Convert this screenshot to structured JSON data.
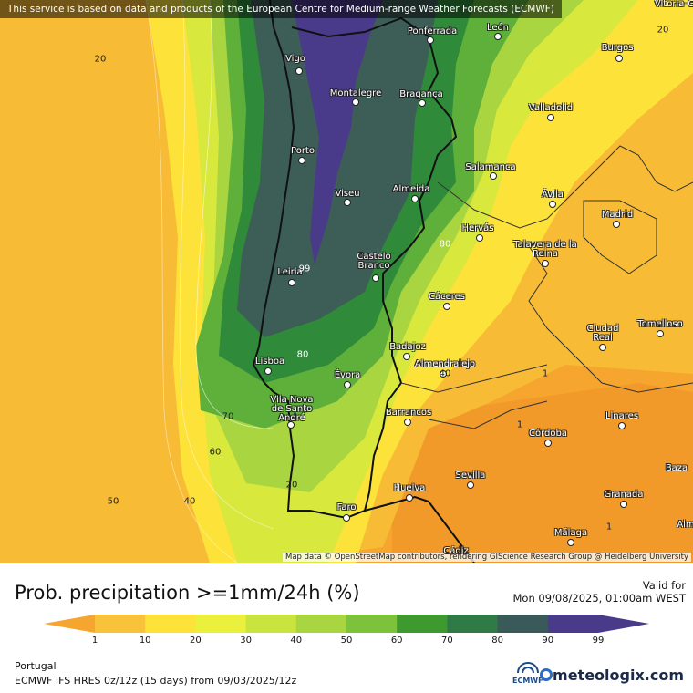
{
  "map": {
    "banner": "This service is based on data and products of the European Centre for Medium-range Weather Forecasts (ECMWF)",
    "attribution": "Map data © OpenStreetMap contributors, rendering GIScience Research Group @ Heidelberg University",
    "corner_label": "Vitoria-G",
    "cities": [
      {
        "name": "Vigo"
      },
      {
        "name": "Ponferrada"
      },
      {
        "name": "León"
      },
      {
        "name": "Burgos"
      },
      {
        "name": "Montalegre"
      },
      {
        "name": "Bragança"
      },
      {
        "name": "Valladolid"
      },
      {
        "name": "Porto"
      },
      {
        "name": "Salamanca"
      },
      {
        "name": "Viseu"
      },
      {
        "name": "Almeida"
      },
      {
        "name": "Ávila"
      },
      {
        "name": "Madrid"
      },
      {
        "name": "Hervás"
      },
      {
        "name": "Talavera de la Reina"
      },
      {
        "name": "Castelo Branco"
      },
      {
        "name": "Leiria"
      },
      {
        "name": "Cáceres"
      },
      {
        "name": "Ciudad Real"
      },
      {
        "name": "Tomelloso"
      },
      {
        "name": "Lisboa"
      },
      {
        "name": "Badajoz"
      },
      {
        "name": "Almendralejo"
      },
      {
        "name": "Évora"
      },
      {
        "name": "Vila Nova de Santo André"
      },
      {
        "name": "Barrancos"
      },
      {
        "name": "Linares"
      },
      {
        "name": "Córdoba"
      },
      {
        "name": "Sevilla"
      },
      {
        "name": "Baza"
      },
      {
        "name": "Huelva"
      },
      {
        "name": "Granada"
      },
      {
        "name": "Faro"
      },
      {
        "name": "Málaga"
      },
      {
        "name": "Cádiz"
      },
      {
        "name": "Alm"
      }
    ],
    "contour_labels": [
      "20",
      "20",
      "80",
      "99",
      "80",
      "70",
      "60",
      "50",
      "40",
      "20",
      "40",
      "1",
      "1",
      "1"
    ]
  },
  "legend": {
    "title": "Prob. precipitation >=1mm/24h",
    "unit": "(%)",
    "valid_label": "Valid for",
    "valid_time": "Mon 09/08/2025, 01:00am WEST",
    "ticks": [
      "1",
      "10",
      "20",
      "30",
      "40",
      "50",
      "60",
      "70",
      "80",
      "90",
      "99"
    ],
    "colors": [
      "#f6a52f",
      "#f8c23a",
      "#fde23a",
      "#eaf03c",
      "#c9e43e",
      "#a9d541",
      "#7cc23b",
      "#3e9a2f",
      "#2f7a45",
      "#3a5a5a",
      "#4a3a8a"
    ],
    "region": "Portugal",
    "model_info": "ECMWF IFS HRES 0z/12z (15 days) from 09/03/2025/12z",
    "ecmwf_logo": "ECMWF",
    "brand": "meteologix.com"
  }
}
